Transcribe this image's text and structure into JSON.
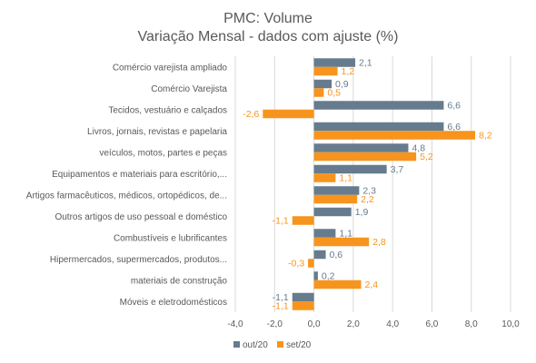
{
  "chart_data": {
    "type": "bar",
    "orientation": "horizontal",
    "title": "PMC: Volume",
    "subtitle": "Variação Mensal - dados com ajuste (%)",
    "categories": [
      "Comércio varejista ampliado",
      "Comércio Varejista",
      "Tecidos, vestuário e calçados",
      "Livros, jornais, revistas e papelaria",
      "veículos, motos, partes e peças",
      "Equipamentos e materiais para escritório,...",
      "Artigos farmacêuticos, médicos, ortopédicos, de...",
      "Outros artigos de uso pessoal e doméstico",
      "Combustíveis e lubrificantes",
      "Hipermercados, supermercados, produtos...",
      "materiais de construção",
      "Móveis e eletrodomésticos"
    ],
    "series": [
      {
        "name": "out/20",
        "color": "#667b8e",
        "values": [
          2.1,
          0.9,
          6.6,
          6.6,
          4.8,
          3.7,
          2.3,
          1.9,
          1.1,
          0.6,
          0.2,
          -1.1
        ],
        "labels": [
          "2,1",
          "0,9",
          "6,6",
          "6,6",
          "4,8",
          "3,7",
          "2,3",
          "1,9",
          "1,1",
          "0,6",
          "0,2",
          "-1,1"
        ]
      },
      {
        "name": "set/20",
        "color": "#f7941d",
        "values": [
          1.2,
          0.5,
          -2.6,
          8.2,
          5.2,
          1.1,
          2.2,
          -1.1,
          2.8,
          -0.3,
          2.4,
          -1.1
        ],
        "labels": [
          "1,2",
          "0,5",
          "-2,6",
          "8,2",
          "5,2",
          "1,1",
          "2,2",
          "-1,1",
          "2,8",
          "-0,3",
          "2,4",
          "-1,1"
        ]
      }
    ],
    "xlim": [
      -4,
      10
    ],
    "xticks": [
      -4,
      -2,
      0,
      2,
      4,
      6,
      8,
      10
    ],
    "xtick_labels": [
      "-4,0",
      "-2,0",
      "0,0",
      "2,0",
      "4,0",
      "6,0",
      "8,0",
      "10,0"
    ],
    "grid": true,
    "legend_position": "bottom"
  }
}
